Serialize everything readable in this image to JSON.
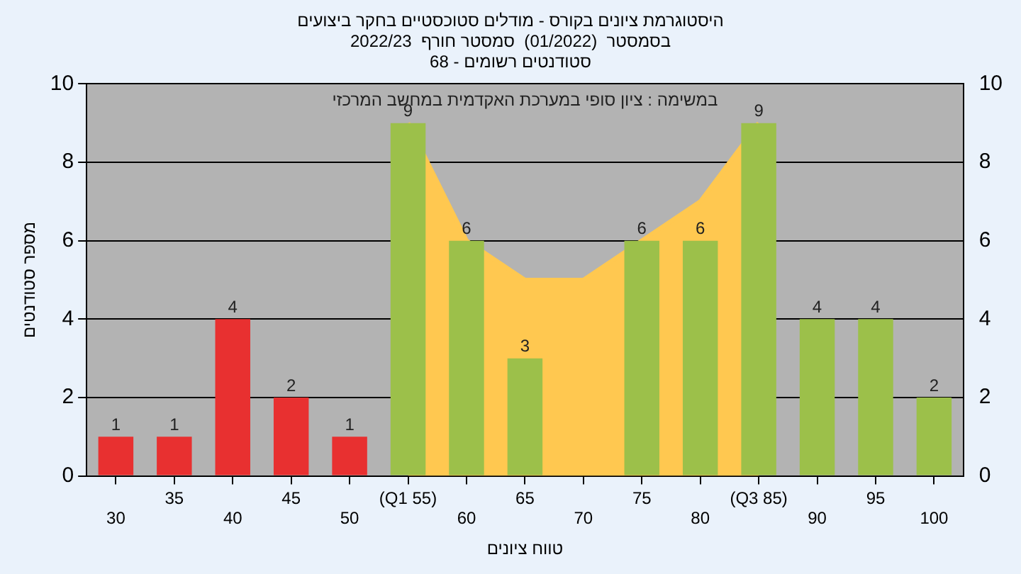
{
  "chart_data": {
    "type": "bar",
    "title": "היסטוגרמת ציונים בקורס - מודלים סטוכסטיים בחקר ביצועים\nבסמסטר  (01/2022)  סמסטר חורף  2022/23\nסטודנטים רשומים - 68",
    "xlabel": "טווח ציונים",
    "ylabel": "מספר סטודנטים",
    "categories": [
      "30",
      "35",
      "40",
      "45",
      "50",
      "(Q1 55)",
      "60",
      "65",
      "70",
      "75",
      "80",
      "(Q3 85)",
      "90",
      "95",
      "100"
    ],
    "series": [
      {
        "type": "area",
        "color": "#ffc850",
        "values": [
          null,
          null,
          null,
          null,
          null,
          9,
          6,
          5,
          5,
          null,
          7,
          9,
          null,
          null,
          null
        ]
      },
      {
        "colors": [
          "#e83030",
          "#e83030",
          "#e83030",
          "#e83030",
          "#e83030",
          "#9cc04a",
          "#9cc04a",
          "#9cc04a",
          "#9cc04a",
          "#9cc04a",
          "#9cc04a",
          "#9cc04a",
          "#9cc04a",
          "#9cc04a",
          "#9cc04a"
        ],
        "values": [
          1,
          1,
          4,
          2,
          1,
          9,
          6,
          3,
          0,
          6,
          6,
          9,
          4,
          4,
          2
        ],
        "value_labels": [
          "1",
          "1",
          "4",
          "2",
          "1",
          "9",
          "6",
          "3",
          null,
          "6",
          "6",
          "9",
          "4",
          "4",
          "2"
        ]
      }
    ],
    "annotations": [
      "במשימה : ציון סופי במערכת האקדמית במחשב המרכזי"
    ],
    "ylim": [
      0,
      10
    ],
    "yticks": [
      0,
      2,
      4,
      6,
      8,
      10
    ],
    "y2lim": [
      0,
      10
    ],
    "y2ticks": [
      0,
      2,
      4,
      6,
      8,
      10
    ],
    "grid": true,
    "legend": false
  }
}
